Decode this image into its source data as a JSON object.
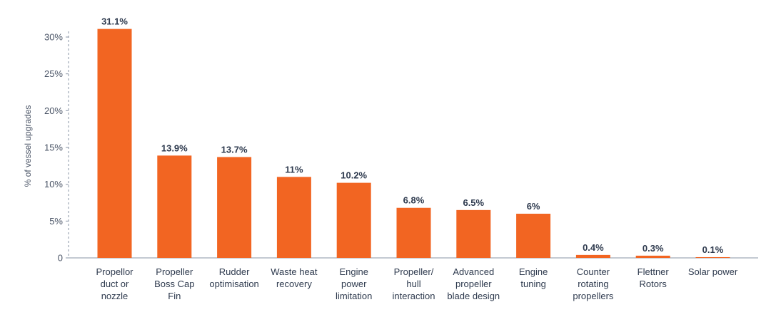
{
  "chart_data": {
    "type": "bar",
    "title": "",
    "xlabel": "",
    "ylabel": "% of vessel upgrades",
    "ylim": [
      0,
      32
    ],
    "yticks": [
      0,
      5,
      10,
      15,
      20,
      25,
      30
    ],
    "ytick_labels": [
      "0",
      "5%",
      "10%",
      "15%",
      "20%",
      "25%",
      "30%"
    ],
    "grid": false,
    "categories": [
      "Propellor duct or nozzle",
      "Propeller Boss Cap Fin",
      "Rudder optimisation",
      "Waste heat recovery",
      "Engine power limitation",
      "Propeller/ hull interaction",
      "Advanced propeller blade design",
      "Engine tuning",
      "Counter rotating propellers",
      "Flettner Rotors",
      "Solar power"
    ],
    "category_lines": [
      [
        "Propellor",
        "duct or",
        "nozzle"
      ],
      [
        "Propeller",
        "Boss Cap",
        "Fin"
      ],
      [
        "Rudder",
        "optimisation"
      ],
      [
        "Waste heat",
        "recovery"
      ],
      [
        "Engine",
        "power",
        "limitation"
      ],
      [
        "Propeller/",
        "hull",
        "interaction"
      ],
      [
        "Advanced",
        "propeller",
        "blade design"
      ],
      [
        "Engine",
        "tuning"
      ],
      [
        "Counter",
        "rotating",
        "propellers"
      ],
      [
        "Flettner",
        "Rotors"
      ],
      [
        "Solar power"
      ]
    ],
    "values": [
      31.1,
      13.9,
      13.7,
      11,
      10.2,
      6.8,
      6.5,
      6,
      0.4,
      0.3,
      0.1
    ],
    "value_labels": [
      "31.1%",
      "13.9%",
      "13.7%",
      "11%",
      "10.2%",
      "6.8%",
      "6.5%",
      "6%",
      "0.4%",
      "0.3%",
      "0.1%"
    ],
    "colors": {
      "bar": "#f26522",
      "axis": "#8a94a6"
    }
  }
}
